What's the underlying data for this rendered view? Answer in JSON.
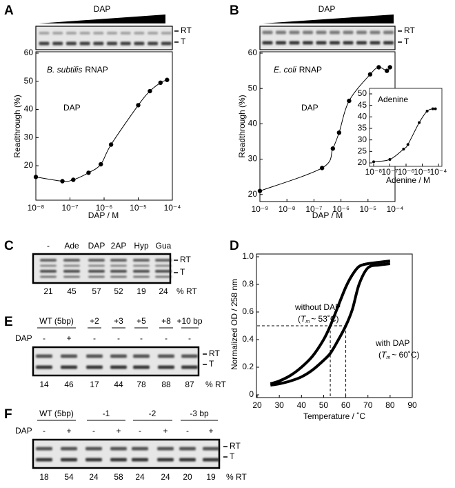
{
  "panel_labels": [
    "A",
    "B",
    "C",
    "D",
    "E",
    "F"
  ],
  "chart_data": [
    {
      "type": "scatter",
      "gel_label": "DAP",
      "band_labels": [
        "RT",
        "T"
      ],
      "title_italic": "B. subtilis",
      "title": "RNAP",
      "annotation": "DAP",
      "x_label": "DAP / M",
      "y_label": "Readthrough (%)",
      "xscale": "log",
      "fit_curve": true,
      "color": "#000000",
      "x": [
        1e-08,
        6e-08,
        1.25e-07,
        3.5e-07,
        8e-07,
        1.6e-06,
        1e-05,
        2.2e-05,
        4.5e-05,
        7e-05
      ],
      "values": [
        16,
        14.5,
        15,
        17.5,
        20.5,
        27.5,
        41.5,
        46.5,
        49.5,
        50.5
      ],
      "xlim": [
        1e-08,
        0.0001
      ],
      "ylim": [
        8,
        60
      ],
      "xticks": [
        {
          "value": 1e-08,
          "label": "10⁻⁸"
        },
        {
          "value": 1e-07,
          "label": "10⁻⁷"
        },
        {
          "value": 1e-06,
          "label": "10⁻⁶"
        },
        {
          "value": 1e-05,
          "label": "10⁻⁵"
        },
        {
          "value": 0.0001,
          "label": "10⁻⁴"
        }
      ],
      "yticks": [
        20,
        30,
        40,
        50,
        60
      ]
    },
    {
      "type": "scatter",
      "gel_label": "DAP",
      "band_labels": [
        "RT",
        "T"
      ],
      "title_italic": "E. coli",
      "title": "RNAP",
      "annotation": "DAP",
      "x_label": "DAP / M",
      "y_label": "Readthrough (%)",
      "xscale": "log",
      "fit_curve": true,
      "color": "#000000",
      "x": [
        1e-09,
        2e-07,
        5e-07,
        8.5e-07,
        2e-06,
        1.2e-05,
        2.5e-05,
        5e-05,
        6.5e-05
      ],
      "values": [
        21,
        27.5,
        33,
        37.5,
        46.5,
        54,
        56,
        55,
        56
      ],
      "xlim": [
        1e-09,
        0.0001
      ],
      "ylim": [
        18,
        60
      ],
      "xticks": [
        {
          "value": 1e-09,
          "label": "10⁻⁹"
        },
        {
          "value": 1e-08,
          "label": "10⁻⁸"
        },
        {
          "value": 1e-07,
          "label": "10⁻⁷"
        },
        {
          "value": 1e-06,
          "label": "10⁻⁶"
        },
        {
          "value": 1e-05,
          "label": "10⁻⁵"
        },
        {
          "value": 0.0001,
          "label": "10⁻⁴"
        }
      ],
      "yticks": [
        20,
        30,
        40,
        50,
        60
      ]
    },
    {
      "type": "scatter",
      "annotation": "Adenine",
      "x_label": "Adenine / M",
      "xscale": "log",
      "fit_curve": true,
      "color": "#000000",
      "x": [
        1e-08,
        1e-07,
        7e-07,
        1.3e-06,
        6.5e-06,
        2e-05,
        4.5e-05,
        6.5e-05
      ],
      "values": [
        20.5,
        21.5,
        26,
        28,
        37.5,
        42.5,
        43.5,
        43.5
      ],
      "xlim": [
        1e-08,
        0.0001
      ],
      "ylim": [
        20,
        50
      ],
      "xticks": [
        {
          "value": 1e-08,
          "label": "10⁻⁸"
        },
        {
          "value": 1e-07,
          "label": "10⁻⁷"
        },
        {
          "value": 1e-06,
          "label": "10⁻⁶"
        },
        {
          "value": 1e-05,
          "label": "10⁻⁵"
        },
        {
          "value": 0.0001,
          "label": "10⁻⁴"
        }
      ],
      "yticks": [
        20,
        25,
        30,
        35,
        40,
        45,
        50
      ]
    },
    {
      "type": "line",
      "x_label": "Temperature / ˚C",
      "y_label": "Normalized OD / 258 nm",
      "x": [
        26,
        30,
        35,
        40,
        45,
        50,
        53,
        56,
        60,
        63,
        66,
        70,
        75,
        80
      ],
      "series": [
        {
          "name": "without DAP",
          "color": "#000000",
          "values": [
            0.08,
            0.1,
            0.14,
            0.2,
            0.28,
            0.4,
            0.5,
            0.62,
            0.78,
            0.87,
            0.93,
            0.95,
            0.96,
            0.97
          ]
        },
        {
          "name": "with DAP",
          "color": "#000000",
          "values": [
            0.07,
            0.08,
            0.1,
            0.13,
            0.18,
            0.25,
            0.3,
            0.38,
            0.5,
            0.62,
            0.8,
            0.92,
            0.94,
            0.95
          ]
        }
      ],
      "tm_labels": [
        [
          "(",
          "T",
          "m",
          "~ 53˚C)"
        ],
        [
          "(",
          "T",
          "m",
          "~ 60˚C)"
        ]
      ],
      "reference_lines": {
        "x": [
          53,
          60
        ],
        "y": 0.5
      },
      "xlim": [
        20,
        90
      ],
      "ylim": [
        0,
        1
      ],
      "xticks": [
        20,
        30,
        40,
        50,
        60,
        70,
        80,
        90
      ],
      "yticks": [
        0,
        0.2,
        0.4,
        0.6,
        0.8,
        {
          "value": 1,
          "label": "1.0"
        }
      ]
    }
  ],
  "gels": {
    "C": {
      "lanes": [
        "-",
        "Ade",
        "DAP",
        "2AP",
        "Hyp",
        "Gua"
      ],
      "percent_rt": [
        21,
        45,
        57,
        52,
        19,
        24
      ],
      "unit": "% RT",
      "band_labels": [
        "RT",
        "T"
      ]
    },
    "E": {
      "lane_groups": [
        "WT (5bp)",
        "+2",
        "+3",
        "+5",
        "+8",
        "+10 bp"
      ],
      "dap_label": "DAP",
      "dap": [
        "-",
        "+",
        "-",
        "-",
        "-",
        "-",
        "-"
      ],
      "percent_rt": [
        14,
        46,
        17,
        44,
        78,
        88,
        87
      ],
      "unit": "% RT",
      "band_labels": [
        "RT",
        "T"
      ]
    },
    "F": {
      "lane_groups": [
        "WT (5bp)",
        "-1",
        "-2",
        "-3 bp"
      ],
      "dap_label": "DAP",
      "dap": [
        "-",
        "+",
        "-",
        "+",
        "-",
        "+",
        "-",
        "+"
      ],
      "percent_rt": [
        18,
        54,
        24,
        58,
        24,
        24,
        20,
        19
      ],
      "unit": "% RT",
      "band_labels": [
        "RT",
        "T"
      ]
    }
  }
}
